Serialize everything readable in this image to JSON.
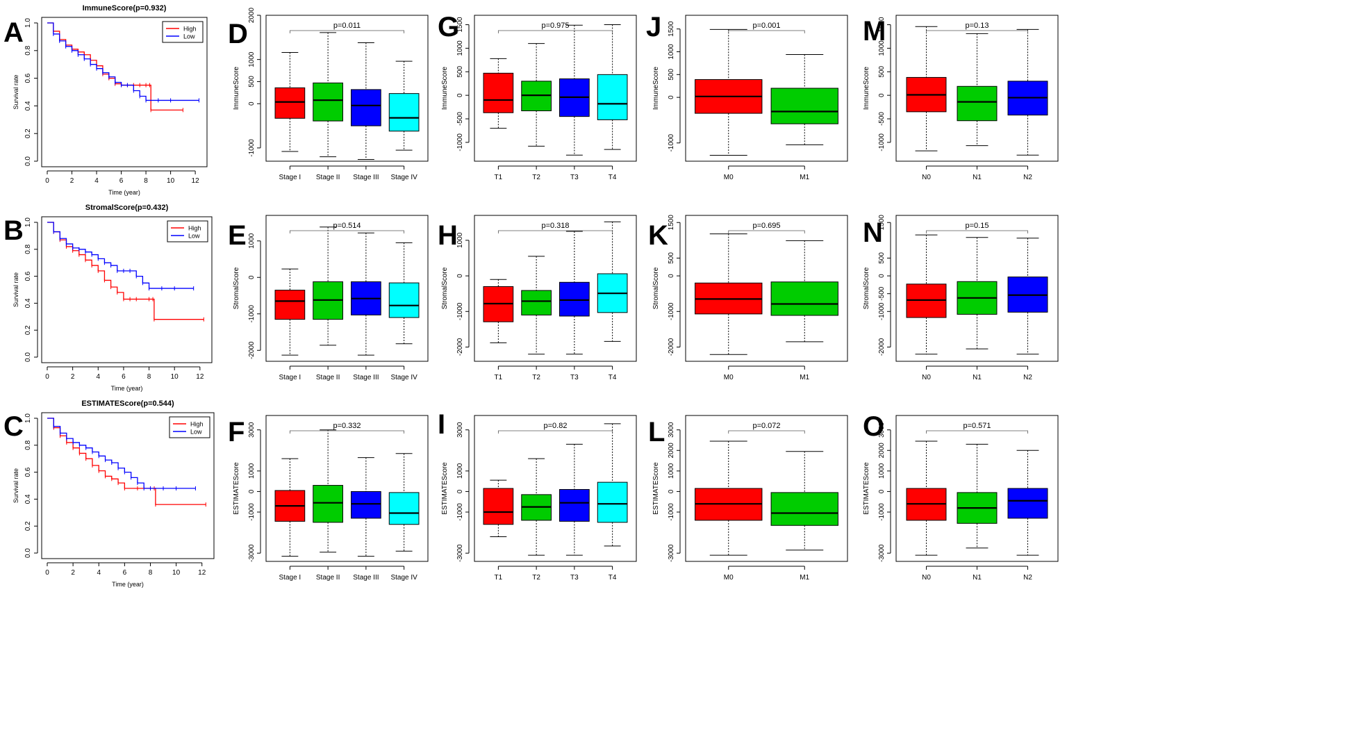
{
  "chart_data": [
    {
      "panel": "A",
      "type": "line",
      "kind": "km",
      "title": "ImmuneScore(p=0.932)",
      "xlabel": "Time (year)",
      "ylabel": "Survival rate",
      "xlim": [
        0,
        12.5
      ],
      "ylim": [
        0,
        1
      ],
      "xticks": [
        "0",
        "2",
        "4",
        "6",
        "8",
        "10",
        "12"
      ],
      "yticks": [
        "0.0",
        "0.2",
        "0.4",
        "0.6",
        "0.8",
        "1.0"
      ],
      "legend": [
        "High",
        "Low"
      ],
      "legend_position": "top-right",
      "series": [
        {
          "name": "High",
          "color": "#ff0000",
          "x": [
            0,
            0.5,
            1,
            1.5,
            2,
            2.5,
            3,
            3.5,
            4,
            4.5,
            5,
            5.5,
            6,
            6.5,
            7,
            7.5,
            8,
            8.3,
            8.4,
            11
          ],
          "y": [
            1,
            0.94,
            0.88,
            0.84,
            0.81,
            0.79,
            0.77,
            0.73,
            0.69,
            0.63,
            0.6,
            0.56,
            0.55,
            0.55,
            0.55,
            0.55,
            0.55,
            0.55,
            0.37,
            0.37
          ]
        },
        {
          "name": "Low",
          "color": "#0000ff",
          "x": [
            0,
            0.5,
            1,
            1.5,
            2,
            2.5,
            3,
            3.5,
            4,
            4.5,
            5,
            5.5,
            6,
            6.5,
            7,
            7.5,
            8,
            9,
            10,
            12.3
          ],
          "y": [
            1,
            0.92,
            0.87,
            0.83,
            0.8,
            0.77,
            0.74,
            0.7,
            0.67,
            0.64,
            0.61,
            0.57,
            0.55,
            0.55,
            0.51,
            0.47,
            0.44,
            0.44,
            0.44,
            0.44
          ]
        }
      ]
    },
    {
      "panel": "B",
      "type": "line",
      "kind": "km",
      "title": "StromalScore(p=0.432)",
      "xlabel": "Time (year)",
      "ylabel": "Survival rate",
      "xlim": [
        0,
        12.5
      ],
      "ylim": [
        0,
        1
      ],
      "xticks": [
        "0",
        "2",
        "4",
        "6",
        "8",
        "10",
        "12"
      ],
      "yticks": [
        "0.0",
        "0.2",
        "0.4",
        "0.6",
        "0.8",
        "1.0"
      ],
      "legend": [
        "High",
        "Low"
      ],
      "legend_position": "top-right",
      "series": [
        {
          "name": "High",
          "color": "#ff0000",
          "x": [
            0,
            0.5,
            1,
            1.5,
            2,
            2.5,
            3,
            3.5,
            4,
            4.5,
            5,
            5.5,
            6,
            6.5,
            7,
            8,
            8.3,
            8.4,
            12.3
          ],
          "y": [
            1,
            0.93,
            0.87,
            0.82,
            0.79,
            0.76,
            0.72,
            0.68,
            0.64,
            0.57,
            0.52,
            0.48,
            0.43,
            0.43,
            0.43,
            0.43,
            0.43,
            0.28,
            0.28
          ]
        },
        {
          "name": "Low",
          "color": "#0000ff",
          "x": [
            0,
            0.5,
            1,
            1.5,
            2,
            2.5,
            3,
            3.5,
            4,
            4.5,
            5,
            5.5,
            6,
            6.5,
            7,
            7.5,
            8,
            9,
            10,
            11.5
          ],
          "y": [
            1,
            0.93,
            0.88,
            0.84,
            0.81,
            0.8,
            0.78,
            0.76,
            0.73,
            0.7,
            0.68,
            0.64,
            0.64,
            0.64,
            0.6,
            0.55,
            0.51,
            0.51,
            0.51,
            0.51
          ]
        }
      ]
    },
    {
      "panel": "C",
      "type": "line",
      "kind": "km",
      "title": "ESTIMATEScore(p=0.544)",
      "xlabel": "Time (year)",
      "ylabel": "Survival rate",
      "xlim": [
        0,
        12.5
      ],
      "ylim": [
        0,
        1
      ],
      "xticks": [
        "0",
        "2",
        "4",
        "6",
        "8",
        "10",
        "12"
      ],
      "yticks": [
        "0.0",
        "0.2",
        "0.4",
        "0.6",
        "0.8",
        "1.0"
      ],
      "legend": [
        "High",
        "Low"
      ],
      "legend_position": "top-right",
      "series": [
        {
          "name": "High",
          "color": "#ff0000",
          "x": [
            0,
            0.5,
            1,
            1.5,
            2,
            2.5,
            3,
            3.5,
            4,
            4.5,
            5,
            5.5,
            6,
            7,
            8,
            8.3,
            8.4,
            12.3
          ],
          "y": [
            1,
            0.93,
            0.87,
            0.82,
            0.78,
            0.74,
            0.7,
            0.65,
            0.61,
            0.57,
            0.55,
            0.52,
            0.48,
            0.48,
            0.48,
            0.48,
            0.36,
            0.36
          ]
        },
        {
          "name": "Low",
          "color": "#0000ff",
          "x": [
            0,
            0.5,
            1,
            1.5,
            2,
            2.5,
            3,
            3.5,
            4,
            4.5,
            5,
            5.5,
            6,
            6.5,
            7,
            7.5,
            8,
            9,
            10,
            11.5
          ],
          "y": [
            1,
            0.94,
            0.89,
            0.85,
            0.82,
            0.8,
            0.78,
            0.75,
            0.72,
            0.69,
            0.67,
            0.63,
            0.6,
            0.56,
            0.52,
            0.48,
            0.48,
            0.48,
            0.48,
            0.48
          ]
        }
      ]
    },
    {
      "panel": "D",
      "type": "box",
      "ylabel": "ImmuneScore",
      "pval": "p=0.011",
      "ylim": [
        -1300,
        2000
      ],
      "yticks": [
        -1000,
        0,
        500,
        1000,
        2000
      ],
      "categories": [
        "Stage I",
        "Stage II",
        "Stage III",
        "Stage IV"
      ],
      "colors": [
        "#ff0000",
        "#00cc00",
        "#0000ff",
        "#00ffff"
      ],
      "boxes": [
        {
          "min": -1080,
          "q1": -330,
          "median": 40,
          "q3": 360,
          "max": 1160
        },
        {
          "min": -1200,
          "q1": -390,
          "median": 80,
          "q3": 470,
          "max": 1610
        },
        {
          "min": -1260,
          "q1": -500,
          "median": -40,
          "q3": 320,
          "max": 1380
        },
        {
          "min": -1050,
          "q1": -620,
          "median": -320,
          "q3": 230,
          "max": 960
        }
      ]
    },
    {
      "panel": "G",
      "type": "box",
      "ylabel": "ImmuneScore",
      "pval": "p=0.975",
      "ylim": [
        -1400,
        1700
      ],
      "yticks": [
        -1000,
        -500,
        0,
        500,
        1000,
        1500
      ],
      "categories": [
        "T1",
        "T2",
        "T3",
        "T4"
      ],
      "colors": [
        "#ff0000",
        "#00cc00",
        "#0000ff",
        "#00ffff"
      ],
      "boxes": [
        {
          "min": -700,
          "q1": -370,
          "median": -100,
          "q3": 470,
          "max": 780
        },
        {
          "min": -1080,
          "q1": -330,
          "median": 0,
          "q3": 300,
          "max": 1100
        },
        {
          "min": -1270,
          "q1": -450,
          "median": -40,
          "q3": 350,
          "max": 1490
        },
        {
          "min": -1150,
          "q1": -520,
          "median": -180,
          "q3": 440,
          "max": 1500
        }
      ]
    },
    {
      "panel": "J",
      "type": "box",
      "ylabel": "ImmuneScore",
      "pval": "p=0.001",
      "ylim": [
        -1400,
        1800
      ],
      "yticks": [
        -1000,
        0,
        500,
        1000,
        1500
      ],
      "categories": [
        "M0",
        "M1"
      ],
      "colors": [
        "#ff0000",
        "#00cc00"
      ],
      "boxes": [
        {
          "min": -1270,
          "q1": -350,
          "median": 20,
          "q3": 390,
          "max": 1490
        },
        {
          "min": -1040,
          "q1": -580,
          "median": -310,
          "q3": 200,
          "max": 940
        }
      ]
    },
    {
      "panel": "M",
      "type": "box",
      "ylabel": "ImmuneScore",
      "pval": "p=0.13",
      "ylim": [
        -1400,
        1700
      ],
      "yticks": [
        -1000,
        -500,
        0,
        500,
        1000,
        1500
      ],
      "categories": [
        "N0",
        "N1",
        "N2"
      ],
      "colors": [
        "#ff0000",
        "#00cc00",
        "#0000ff"
      ],
      "boxes": [
        {
          "min": -1180,
          "q1": -350,
          "median": 10,
          "q3": 380,
          "max": 1460
        },
        {
          "min": -1070,
          "q1": -540,
          "median": -140,
          "q3": 190,
          "max": 1310
        },
        {
          "min": -1270,
          "q1": -420,
          "median": -50,
          "q3": 300,
          "max": 1400
        }
      ]
    },
    {
      "panel": "E",
      "type": "box",
      "ylabel": "StromalScore",
      "pval": "p=0.514",
      "ylim": [
        -2300,
        1700
      ],
      "yticks": [
        -2000,
        -1000,
        0,
        1000
      ],
      "categories": [
        "Stage I",
        "Stage II",
        "Stage III",
        "Stage IV"
      ],
      "colors": [
        "#ff0000",
        "#00cc00",
        "#0000ff",
        "#00ffff"
      ],
      "boxes": [
        {
          "min": -2130,
          "q1": -1150,
          "median": -650,
          "q3": -350,
          "max": 230
        },
        {
          "min": -1860,
          "q1": -1150,
          "median": -620,
          "q3": -120,
          "max": 1380
        },
        {
          "min": -2130,
          "q1": -1030,
          "median": -580,
          "q3": -120,
          "max": 1220
        },
        {
          "min": -1820,
          "q1": -1100,
          "median": -770,
          "q3": -150,
          "max": 950
        }
      ]
    },
    {
      "panel": "H",
      "type": "box",
      "ylabel": "StromalScore",
      "pval": "p=0.318",
      "ylim": [
        -2400,
        1700
      ],
      "yticks": [
        -2000,
        -1000,
        0,
        1000
      ],
      "categories": [
        "T1",
        "T2",
        "T3",
        "T4"
      ],
      "colors": [
        "#ff0000",
        "#00cc00",
        "#0000ff",
        "#00ffff"
      ],
      "boxes": [
        {
          "min": -1880,
          "q1": -1290,
          "median": -780,
          "q3": -300,
          "max": -100
        },
        {
          "min": -2200,
          "q1": -1100,
          "median": -710,
          "q3": -410,
          "max": 550
        },
        {
          "min": -2200,
          "q1": -1130,
          "median": -680,
          "q3": -180,
          "max": 1250
        },
        {
          "min": -1840,
          "q1": -1030,
          "median": -490,
          "q3": 60,
          "max": 1520
        }
      ]
    },
    {
      "panel": "K",
      "type": "box",
      "ylabel": "StromalScore",
      "pval": "p=0.695",
      "ylim": [
        -2400,
        1700
      ],
      "yticks": [
        -2000,
        -1000,
        0,
        500,
        1500
      ],
      "categories": [
        "M0",
        "M1"
      ],
      "colors": [
        "#ff0000",
        "#00cc00"
      ],
      "boxes": [
        {
          "min": -2210,
          "q1": -1070,
          "median": -650,
          "q3": -200,
          "max": 1180
        },
        {
          "min": -1850,
          "q1": -1110,
          "median": -790,
          "q3": -170,
          "max": 990
        }
      ]
    },
    {
      "panel": "N",
      "type": "box",
      "ylabel": "StromalScore",
      "pval": "p=0.15",
      "ylim": [
        -2400,
        1700
      ],
      "yticks": [
        -2000,
        -1000,
        -500,
        0,
        500,
        1500
      ],
      "categories": [
        "N0",
        "N1",
        "N2"
      ],
      "colors": [
        "#ff0000",
        "#00cc00",
        "#0000ff"
      ],
      "boxes": [
        {
          "min": -2200,
          "q1": -1170,
          "median": -680,
          "q3": -230,
          "max": 1150
        },
        {
          "min": -2050,
          "q1": -1080,
          "median": -620,
          "q3": -160,
          "max": 1080
        },
        {
          "min": -2200,
          "q1": -1020,
          "median": -540,
          "q3": -30,
          "max": 1060
        }
      ]
    },
    {
      "panel": "F",
      "type": "box",
      "ylabel": "ESTIMATEScore",
      "pval": "p=0.332",
      "ylim": [
        -3400,
        3700
      ],
      "yticks": [
        -3000,
        -1000,
        0,
        1000,
        3000
      ],
      "categories": [
        "Stage I",
        "Stage II",
        "Stage III",
        "Stage IV"
      ],
      "colors": [
        "#ff0000",
        "#00cc00",
        "#0000ff",
        "#00ffff"
      ],
      "boxes": [
        {
          "min": -3150,
          "q1": -1450,
          "median": -700,
          "q3": 50,
          "max": 1600
        },
        {
          "min": -2950,
          "q1": -1500,
          "median": -550,
          "q3": 300,
          "max": 3000
        },
        {
          "min": -3150,
          "q1": -1300,
          "median": -600,
          "q3": 0,
          "max": 1650
        },
        {
          "min": -2900,
          "q1": -1600,
          "median": -1050,
          "q3": -50,
          "max": 1850
        }
      ]
    },
    {
      "panel": "I",
      "type": "box",
      "ylabel": "ESTIMATEScore",
      "pval": "p=0.82",
      "ylim": [
        -3400,
        3700
      ],
      "yticks": [
        -3000,
        -1000,
        0,
        1000,
        3000
      ],
      "categories": [
        "T1",
        "T2",
        "T3",
        "T4"
      ],
      "colors": [
        "#ff0000",
        "#00cc00",
        "#0000ff",
        "#00ffff"
      ],
      "boxes": [
        {
          "min": -2200,
          "q1": -1600,
          "median": -1000,
          "q3": 150,
          "max": 550
        },
        {
          "min": -3100,
          "q1": -1400,
          "median": -750,
          "q3": -150,
          "max": 1600
        },
        {
          "min": -3100,
          "q1": -1450,
          "median": -550,
          "q3": 100,
          "max": 2300
        },
        {
          "min": -2650,
          "q1": -1500,
          "median": -600,
          "q3": 450,
          "max": 3300
        }
      ]
    },
    {
      "panel": "L",
      "type": "box",
      "ylabel": "ESTIMATEScore",
      "pval": "p=0.072",
      "ylim": [
        -3400,
        3700
      ],
      "yticks": [
        -3000,
        -1000,
        0,
        1000,
        2000,
        3000
      ],
      "categories": [
        "M0",
        "M1"
      ],
      "colors": [
        "#ff0000",
        "#00cc00"
      ],
      "boxes": [
        {
          "min": -3100,
          "q1": -1400,
          "median": -600,
          "q3": 150,
          "max": 2450
        },
        {
          "min": -2850,
          "q1": -1650,
          "median": -1050,
          "q3": -50,
          "max": 1950
        }
      ]
    },
    {
      "panel": "O",
      "type": "box",
      "ylabel": "ESTIMATEScore",
      "pval": "p=0.571",
      "ylim": [
        -3400,
        3700
      ],
      "yticks": [
        -3000,
        -1000,
        0,
        1000,
        2000,
        3000
      ],
      "categories": [
        "N0",
        "N1",
        "N2"
      ],
      "colors": [
        "#ff0000",
        "#00cc00",
        "#0000ff"
      ],
      "boxes": [
        {
          "min": -3100,
          "q1": -1400,
          "median": -600,
          "q3": 150,
          "max": 2450
        },
        {
          "min": -2750,
          "q1": -1550,
          "median": -800,
          "q3": -50,
          "max": 2300
        },
        {
          "min": -3100,
          "q1": -1300,
          "median": -450,
          "q3": 150,
          "max": 2000
        }
      ]
    }
  ]
}
